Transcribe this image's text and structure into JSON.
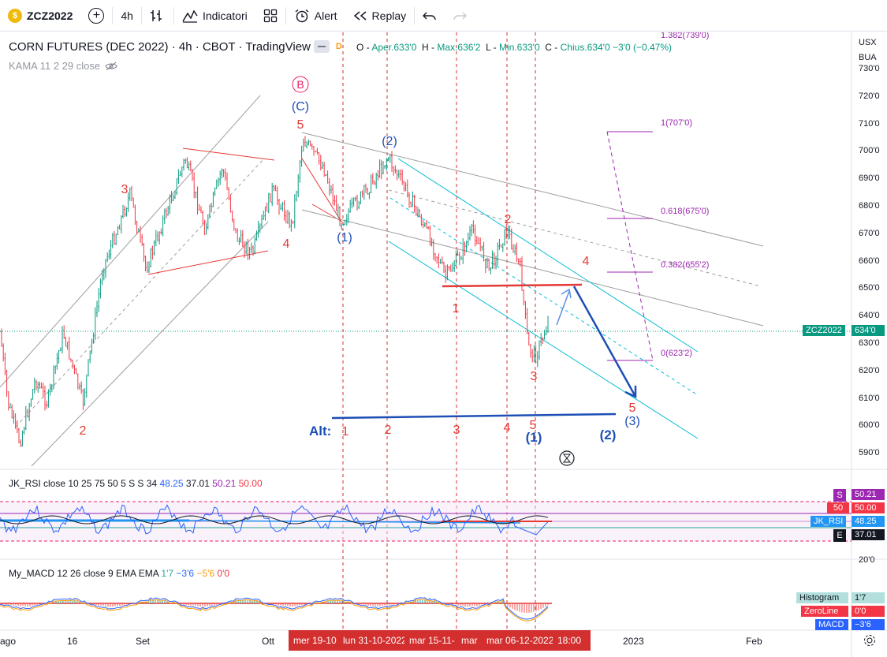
{
  "toolbar": {
    "symbol": "ZCZ2022",
    "interval": "4h",
    "indicators_label": "Indicatori",
    "alert_label": "Alert",
    "replay_label": "Replay"
  },
  "legend": {
    "title": "CORN FUTURES (DEC 2022) · 4h · CBOT · TradingView",
    "d_badge": "D",
    "ohlc": {
      "o_label": "O",
      "open": "Aper.633'0",
      "h_label": "H",
      "high": "Max.636'2",
      "l_label": "L",
      "low": "Min.633'0",
      "c_label": "C",
      "close": "Chius.634'0",
      "change": "−3'0 (−0.47%)"
    },
    "kama": "KAMA 11 2 29 close"
  },
  "axis": {
    "currency": "USX",
    "currency_sub": "BUA",
    "top_label": "1.382(739'0)",
    "prices": [
      "730'0",
      "720'0",
      "710'0",
      "700'0",
      "690'0",
      "680'0",
      "670'0",
      "660'0",
      "650'0",
      "640'0",
      "630'0",
      "620'0",
      "610'0",
      "600'0",
      "590'0"
    ],
    "current_symbol": "ZCZ2022",
    "current_price": "634'0",
    "rsi_scale_bottom": "20'0"
  },
  "fib": {
    "f1": "1(707'0)",
    "f618": "0.618(675'0)",
    "f382": "0.382(655'2)",
    "f0": "0(623'2)"
  },
  "waves": {
    "B": "B",
    "C": "(C)",
    "r5_top": "5",
    "r3_left": "3",
    "r4_left": "4",
    "r2_left": "2",
    "w1": "(1)",
    "w2": "(2)",
    "r1": "1",
    "r2": "2",
    "r3": "3",
    "r4": "4",
    "r5": "5",
    "w3": "(3)",
    "alt": "Alt:",
    "alt1": "1",
    "alt2": "2",
    "alt3": "3",
    "alt4": "4",
    "alt5": "5",
    "alt_w1": "(1)",
    "alt_w2": "(2)"
  },
  "rsi": {
    "label": "JK_RSI close 10 25 75 50 5 S S 34",
    "v1": "48.25",
    "v2": "37.01",
    "v3": "50.21",
    "v4": "50.00",
    "box_s": "S",
    "box_s_val": "50.21",
    "box_50": "50",
    "box_50_val": "50.00",
    "box_rsi": "JK_RSI",
    "box_rsi_val": "48.25",
    "box_e": "E",
    "box_e_val": "37.01"
  },
  "macd": {
    "label": "My_MACD 12 26 close 9 EMA EMA",
    "v1": "1'7",
    "v2": "−3'6",
    "v3": "−5'6",
    "v4": "0'0",
    "hist_label": "Histogram",
    "hist_val": "1'7",
    "zero_label": "ZeroLine",
    "zero_val": "0'0",
    "macd_label": "MACD",
    "macd_val": "−3'6"
  },
  "time_axis": {
    "labels": [
      "ago",
      "16",
      "Set",
      "Ott",
      "2023",
      "Feb"
    ],
    "red_labels": [
      "mer 19-10",
      "lun 31-10-2022",
      "mar 15-11-",
      "mar",
      "mar 06-12-2022",
      "18:00"
    ]
  },
  "colors": {
    "up": "#089981",
    "down": "#f23645",
    "wave_red": "#e53935",
    "wave_blue": "#1e4fb5",
    "cyan": "#00bcd4",
    "fib": "#9c27b0"
  }
}
